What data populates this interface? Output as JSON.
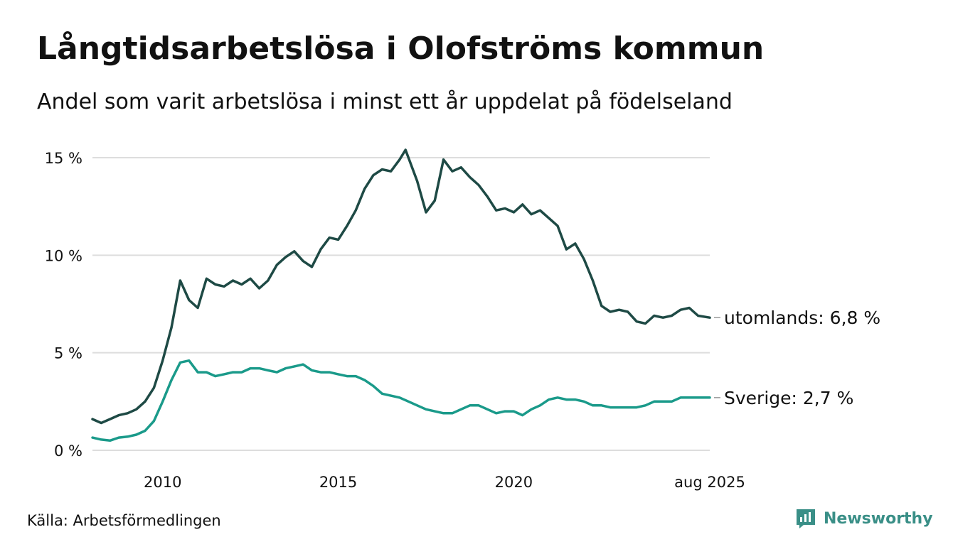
{
  "header": {
    "title": "Långtidsarbetslösa i Olofströms kommun",
    "subtitle": "Andel som varit arbetslösa i minst ett år uppdelat på födelseland"
  },
  "footer": {
    "source": "Källa: Arbetsförmedlingen",
    "brand": "Newsworthy"
  },
  "colors": {
    "utomlands": "#1e4a45",
    "sverige": "#1a9a8a",
    "grid": "#dddddd",
    "brand": "#3a8f87"
  },
  "chart_data": {
    "type": "line",
    "title": "Långtidsarbetslösa i Olofströms kommun",
    "subtitle": "Andel som varit arbetslösa i minst ett år uppdelat på födelseland",
    "unit": "%",
    "x_start": "2008-01",
    "x_end": "2025-08",
    "x_ticks": [
      {
        "value": "2010-01",
        "label": "2010"
      },
      {
        "value": "2015-01",
        "label": "2015"
      },
      {
        "value": "2020-01",
        "label": "2020"
      },
      {
        "value": "2025-08",
        "label": "aug 2025"
      }
    ],
    "y_ticks": [
      {
        "value": 0,
        "label": "0 %"
      },
      {
        "value": 5,
        "label": "5 %"
      },
      {
        "value": 10,
        "label": "10 %"
      },
      {
        "value": 15,
        "label": "15 %"
      }
    ],
    "ylim": [
      0,
      15.5
    ],
    "grid": "horizontal",
    "series": [
      {
        "name": "utomlands",
        "end_label": "utomlands: 6,8 %",
        "color": "#1e4a45",
        "points": [
          [
            "2008-01",
            1.6
          ],
          [
            "2008-04",
            1.4
          ],
          [
            "2008-07",
            1.6
          ],
          [
            "2008-10",
            1.8
          ],
          [
            "2009-01",
            1.9
          ],
          [
            "2009-04",
            2.1
          ],
          [
            "2009-07",
            2.5
          ],
          [
            "2009-10",
            3.2
          ],
          [
            "2010-01",
            4.6
          ],
          [
            "2010-04",
            6.3
          ],
          [
            "2010-07",
            8.7
          ],
          [
            "2010-10",
            7.7
          ],
          [
            "2011-01",
            7.3
          ],
          [
            "2011-04",
            8.8
          ],
          [
            "2011-07",
            8.5
          ],
          [
            "2011-10",
            8.4
          ],
          [
            "2012-01",
            8.7
          ],
          [
            "2012-04",
            8.5
          ],
          [
            "2012-07",
            8.8
          ],
          [
            "2012-10",
            8.3
          ],
          [
            "2013-01",
            8.7
          ],
          [
            "2013-04",
            9.5
          ],
          [
            "2013-07",
            9.9
          ],
          [
            "2013-10",
            10.2
          ],
          [
            "2014-01",
            9.7
          ],
          [
            "2014-04",
            9.4
          ],
          [
            "2014-07",
            10.3
          ],
          [
            "2014-10",
            10.9
          ],
          [
            "2015-01",
            10.8
          ],
          [
            "2015-04",
            11.5
          ],
          [
            "2015-07",
            12.3
          ],
          [
            "2015-10",
            13.4
          ],
          [
            "2016-01",
            14.1
          ],
          [
            "2016-04",
            14.4
          ],
          [
            "2016-07",
            14.3
          ],
          [
            "2016-10",
            14.9
          ],
          [
            "2016-12",
            15.4
          ],
          [
            "2017-04",
            13.8
          ],
          [
            "2017-07",
            12.2
          ],
          [
            "2017-10",
            12.8
          ],
          [
            "2018-01",
            14.9
          ],
          [
            "2018-04",
            14.3
          ],
          [
            "2018-07",
            14.5
          ],
          [
            "2018-10",
            14.0
          ],
          [
            "2019-01",
            13.6
          ],
          [
            "2019-04",
            13.0
          ],
          [
            "2019-07",
            12.3
          ],
          [
            "2019-10",
            12.4
          ],
          [
            "2020-01",
            12.2
          ],
          [
            "2020-04",
            12.6
          ],
          [
            "2020-07",
            12.1
          ],
          [
            "2020-10",
            12.3
          ],
          [
            "2021-01",
            11.9
          ],
          [
            "2021-04",
            11.5
          ],
          [
            "2021-07",
            10.3
          ],
          [
            "2021-10",
            10.6
          ],
          [
            "2022-01",
            9.8
          ],
          [
            "2022-04",
            8.7
          ],
          [
            "2022-07",
            7.4
          ],
          [
            "2022-10",
            7.1
          ],
          [
            "2023-01",
            7.2
          ],
          [
            "2023-04",
            7.1
          ],
          [
            "2023-07",
            6.6
          ],
          [
            "2023-10",
            6.5
          ],
          [
            "2024-01",
            6.9
          ],
          [
            "2024-04",
            6.8
          ],
          [
            "2024-07",
            6.9
          ],
          [
            "2024-10",
            7.2
          ],
          [
            "2025-01",
            7.3
          ],
          [
            "2025-04",
            6.9
          ],
          [
            "2025-08",
            6.8
          ]
        ]
      },
      {
        "name": "Sverige",
        "end_label": "Sverige: 2,7 %",
        "color": "#1a9a8a",
        "points": [
          [
            "2008-01",
            0.65
          ],
          [
            "2008-04",
            0.55
          ],
          [
            "2008-07",
            0.5
          ],
          [
            "2008-10",
            0.65
          ],
          [
            "2009-01",
            0.7
          ],
          [
            "2009-04",
            0.8
          ],
          [
            "2009-07",
            1.0
          ],
          [
            "2009-10",
            1.5
          ],
          [
            "2010-01",
            2.5
          ],
          [
            "2010-04",
            3.6
          ],
          [
            "2010-07",
            4.5
          ],
          [
            "2010-10",
            4.6
          ],
          [
            "2011-01",
            4.0
          ],
          [
            "2011-04",
            4.0
          ],
          [
            "2011-07",
            3.8
          ],
          [
            "2011-10",
            3.9
          ],
          [
            "2012-01",
            4.0
          ],
          [
            "2012-04",
            4.0
          ],
          [
            "2012-07",
            4.2
          ],
          [
            "2012-10",
            4.2
          ],
          [
            "2013-01",
            4.1
          ],
          [
            "2013-04",
            4.0
          ],
          [
            "2013-07",
            4.2
          ],
          [
            "2013-10",
            4.3
          ],
          [
            "2014-01",
            4.4
          ],
          [
            "2014-04",
            4.1
          ],
          [
            "2014-07",
            4.0
          ],
          [
            "2014-10",
            4.0
          ],
          [
            "2015-01",
            3.9
          ],
          [
            "2015-04",
            3.8
          ],
          [
            "2015-07",
            3.8
          ],
          [
            "2015-10",
            3.6
          ],
          [
            "2016-01",
            3.3
          ],
          [
            "2016-04",
            2.9
          ],
          [
            "2016-07",
            2.8
          ],
          [
            "2016-10",
            2.7
          ],
          [
            "2017-01",
            2.5
          ],
          [
            "2017-04",
            2.3
          ],
          [
            "2017-07",
            2.1
          ],
          [
            "2017-10",
            2.0
          ],
          [
            "2018-01",
            1.9
          ],
          [
            "2018-04",
            1.9
          ],
          [
            "2018-07",
            2.1
          ],
          [
            "2018-10",
            2.3
          ],
          [
            "2019-01",
            2.3
          ],
          [
            "2019-04",
            2.1
          ],
          [
            "2019-07",
            1.9
          ],
          [
            "2019-10",
            2.0
          ],
          [
            "2020-01",
            2.0
          ],
          [
            "2020-04",
            1.8
          ],
          [
            "2020-07",
            2.1
          ],
          [
            "2020-10",
            2.3
          ],
          [
            "2021-01",
            2.6
          ],
          [
            "2021-04",
            2.7
          ],
          [
            "2021-07",
            2.6
          ],
          [
            "2021-10",
            2.6
          ],
          [
            "2022-01",
            2.5
          ],
          [
            "2022-04",
            2.3
          ],
          [
            "2022-07",
            2.3
          ],
          [
            "2022-10",
            2.2
          ],
          [
            "2023-01",
            2.2
          ],
          [
            "2023-04",
            2.2
          ],
          [
            "2023-07",
            2.2
          ],
          [
            "2023-10",
            2.3
          ],
          [
            "2024-01",
            2.5
          ],
          [
            "2024-04",
            2.5
          ],
          [
            "2024-07",
            2.5
          ],
          [
            "2024-10",
            2.7
          ],
          [
            "2025-01",
            2.7
          ],
          [
            "2025-04",
            2.7
          ],
          [
            "2025-08",
            2.7
          ]
        ]
      }
    ]
  }
}
